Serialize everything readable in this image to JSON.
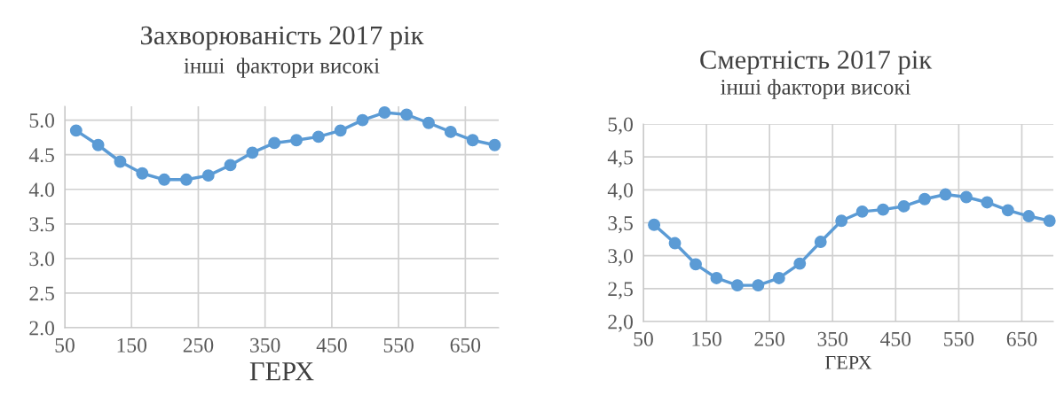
{
  "chart_data": [
    {
      "type": "line",
      "title": "Захворюваність 2017 рік",
      "subtitle": "інші  фактори високі",
      "xlabel": "ГЕРХ",
      "x": [
        67,
        100,
        133,
        166,
        199,
        232,
        265,
        298,
        331,
        364,
        397,
        430,
        463,
        496,
        529,
        562,
        595,
        628,
        661,
        694
      ],
      "series": [
        {
          "color": "#5b9bd5",
          "values": [
            4.85,
            4.64,
            4.4,
            4.23,
            4.14,
            4.14,
            4.2,
            4.35,
            4.53,
            4.67,
            4.71,
            4.76,
            4.85,
            5.0,
            5.11,
            5.08,
            4.96,
            4.83,
            4.71,
            4.64
          ]
        }
      ],
      "xlim": [
        50,
        700
      ],
      "xticks": [
        50,
        150,
        250,
        350,
        450,
        550,
        650
      ],
      "ylim": [
        2,
        5.2
      ],
      "yticks": [
        {
          "value": 2,
          "label": "2.0"
        },
        {
          "value": 2.5,
          "label": "2.5"
        },
        {
          "value": 3,
          "label": "3.0"
        },
        {
          "value": 3.5,
          "label": "3.5"
        },
        {
          "value": 4,
          "label": "4.0"
        },
        {
          "value": 4.5,
          "label": "4.5"
        },
        {
          "value": 5,
          "label": "5.0"
        }
      ],
      "grid": true,
      "marker": "circle",
      "line_style": "solid"
    },
    {
      "type": "line",
      "title": "Смертність 2017 рік",
      "subtitle": "інші фактори високі",
      "xlabel": "ГЕРХ",
      "x": [
        67,
        100,
        133,
        166,
        199,
        232,
        265,
        298,
        331,
        364,
        397,
        430,
        463,
        496,
        529,
        562,
        595,
        628,
        661,
        694
      ],
      "series": [
        {
          "color": "#5b9bd5",
          "values": [
            3.47,
            3.19,
            2.87,
            2.66,
            2.55,
            2.55,
            2.66,
            2.88,
            3.21,
            3.53,
            3.67,
            3.7,
            3.75,
            3.86,
            3.93,
            3.89,
            3.81,
            3.69,
            3.6,
            3.53
          ]
        }
      ],
      "xlim": [
        50,
        700
      ],
      "xticks": [
        50,
        150,
        250,
        350,
        450,
        550,
        650
      ],
      "ylim": [
        2,
        5
      ],
      "yticks": [
        {
          "value": 2,
          "label": "2,0"
        },
        {
          "value": 2.5,
          "label": "2,5"
        },
        {
          "value": 3,
          "label": "3,0"
        },
        {
          "value": 3.5,
          "label": "3,5"
        },
        {
          "value": 4,
          "label": "4,0"
        },
        {
          "value": 4.5,
          "label": "4,5"
        },
        {
          "value": 5,
          "label": "5,0"
        }
      ],
      "grid": true,
      "marker": "circle",
      "line_style": "solid"
    }
  ]
}
